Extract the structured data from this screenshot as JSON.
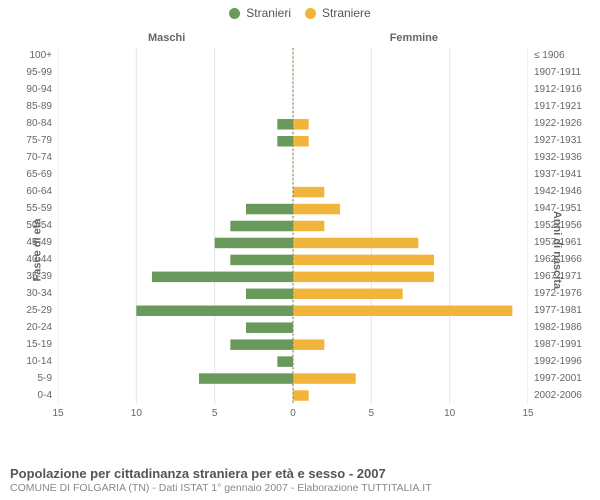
{
  "legend": {
    "male": {
      "label": "Stranieri",
      "color": "#6a9a5b"
    },
    "female": {
      "label": "Straniere",
      "color": "#f2b53b"
    }
  },
  "headers": {
    "left": "Maschi",
    "right": "Femmine"
  },
  "axis_titles": {
    "left": "Fasce di età",
    "right": "Anni di nascita"
  },
  "pyramid": {
    "type": "population-pyramid",
    "x_max": 15,
    "x_ticks": [
      0,
      5,
      10,
      15
    ],
    "bar_fill_ratio": 0.62,
    "grid_color": "#e5e5e5",
    "zero_line_color": "#8a8a55",
    "background_color": "#ffffff",
    "rows": [
      {
        "age": "100+",
        "birth": "≤ 1906",
        "m": 0,
        "f": 0
      },
      {
        "age": "95-99",
        "birth": "1907-1911",
        "m": 0,
        "f": 0
      },
      {
        "age": "90-94",
        "birth": "1912-1916",
        "m": 0,
        "f": 0
      },
      {
        "age": "85-89",
        "birth": "1917-1921",
        "m": 0,
        "f": 0
      },
      {
        "age": "80-84",
        "birth": "1922-1926",
        "m": 1,
        "f": 1
      },
      {
        "age": "75-79",
        "birth": "1927-1931",
        "m": 1,
        "f": 1
      },
      {
        "age": "70-74",
        "birth": "1932-1936",
        "m": 0,
        "f": 0
      },
      {
        "age": "65-69",
        "birth": "1937-1941",
        "m": 0,
        "f": 0
      },
      {
        "age": "60-64",
        "birth": "1942-1946",
        "m": 0,
        "f": 2
      },
      {
        "age": "55-59",
        "birth": "1947-1951",
        "m": 3,
        "f": 3
      },
      {
        "age": "50-54",
        "birth": "1952-1956",
        "m": 4,
        "f": 2
      },
      {
        "age": "45-49",
        "birth": "1957-1961",
        "m": 5,
        "f": 8
      },
      {
        "age": "40-44",
        "birth": "1962-1966",
        "m": 4,
        "f": 9
      },
      {
        "age": "35-39",
        "birth": "1967-1971",
        "m": 9,
        "f": 9
      },
      {
        "age": "30-34",
        "birth": "1972-1976",
        "m": 3,
        "f": 7
      },
      {
        "age": "25-29",
        "birth": "1977-1981",
        "m": 10,
        "f": 14
      },
      {
        "age": "20-24",
        "birth": "1982-1986",
        "m": 3,
        "f": 0
      },
      {
        "age": "15-19",
        "birth": "1987-1991",
        "m": 4,
        "f": 2
      },
      {
        "age": "10-14",
        "birth": "1992-1996",
        "m": 1,
        "f": 0
      },
      {
        "age": "5-9",
        "birth": "1997-2001",
        "m": 6,
        "f": 4
      },
      {
        "age": "0-4",
        "birth": "2002-2006",
        "m": 0,
        "f": 1
      }
    ]
  },
  "footer": {
    "line1": "Popolazione per cittadinanza straniera per età e sesso - 2007",
    "line2": "COMUNE DI FOLGARIA (TN) - Dati ISTAT 1° gennaio 2007 - Elaborazione TUTTITALIA.IT"
  },
  "style": {
    "tick_fontsize": 10,
    "header_fontsize": 11,
    "footer_title_fontsize": 13,
    "footer_sub_fontsize": 10.5
  }
}
